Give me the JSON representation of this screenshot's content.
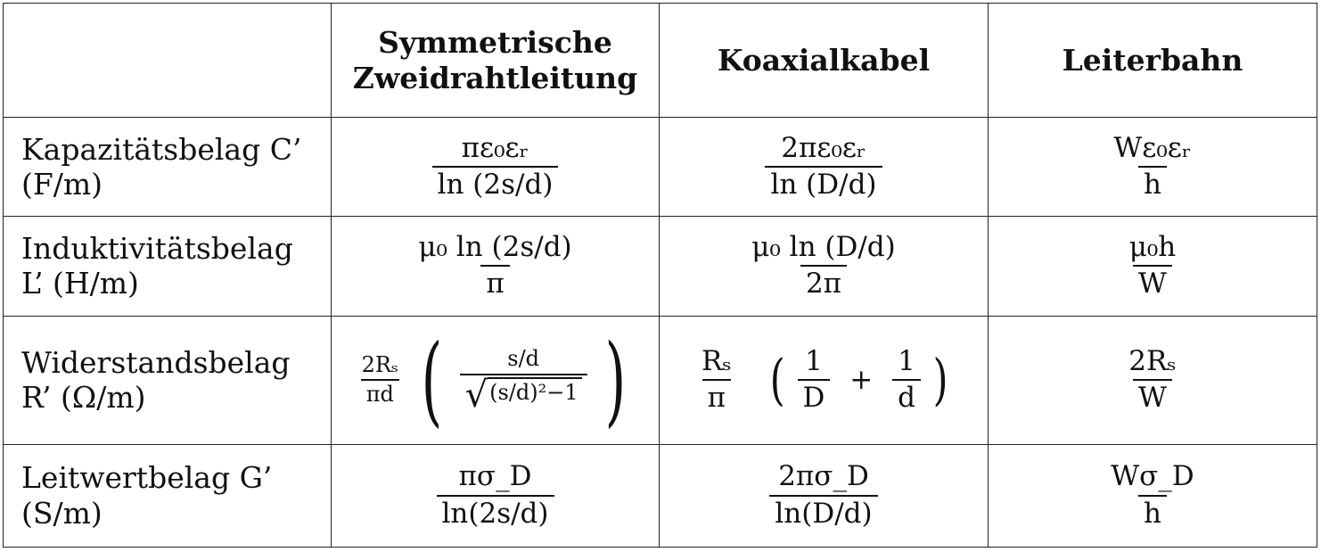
{
  "header": {
    "col0": "",
    "col1_line1": "Symmetrische",
    "col1_line2": "Zweidrahtleitung",
    "col2": "Koaxialkabel",
    "col3": "Leiterbahn"
  },
  "rows": [
    {
      "label_line1": "Kapazitätsbelag C’",
      "label_line2": "(F/m)",
      "f1_num": "πε₀εᵣ",
      "f1_den": "ln (2s/d)",
      "f2_num": "2πε₀εᵣ",
      "f2_den": "ln (D/d)",
      "f3_num": "Wε₀εᵣ",
      "f3_den": "h"
    },
    {
      "label_line1": "Induktivitätsbelag",
      "label_line2": "L’ (H/m)",
      "f1_num": "μ₀ ln (2s/d)",
      "f1_den": "π",
      "f2_num": "μ₀ ln (D/d)",
      "f2_den": "2π",
      "f3_num": "μ₀h",
      "f3_den": "W"
    },
    {
      "label_line1": "Widerstandsbelag",
      "label_line2": "R’ (Ω/m)",
      "f1_pre_num": "2Rₛ",
      "f1_pre_den": "πd",
      "f1_inner_num": "s/d",
      "f1_inner_sqrt": "(s/d)²−1",
      "f2_pre_num": "Rₛ",
      "f2_pre_den": "π",
      "f2_a_num": "1",
      "f2_a_den": "D",
      "f2_plus": "+",
      "f2_b_num": "1",
      "f2_b_den": "d",
      "f3_num": "2Rₛ",
      "f3_den": "W"
    },
    {
      "label_line1": "Leitwertbelag G’",
      "label_line2": "(S/m)",
      "f1_num": "πσ_D",
      "f1_den": "ln(2s/d)",
      "f2_num": "2πσ_D",
      "f2_den": "ln(D/d)",
      "f3_num": "Wσ_D",
      "f3_den": "h"
    }
  ],
  "parens": {
    "open": "(",
    "close": ")"
  },
  "sqrt_sign": "√"
}
